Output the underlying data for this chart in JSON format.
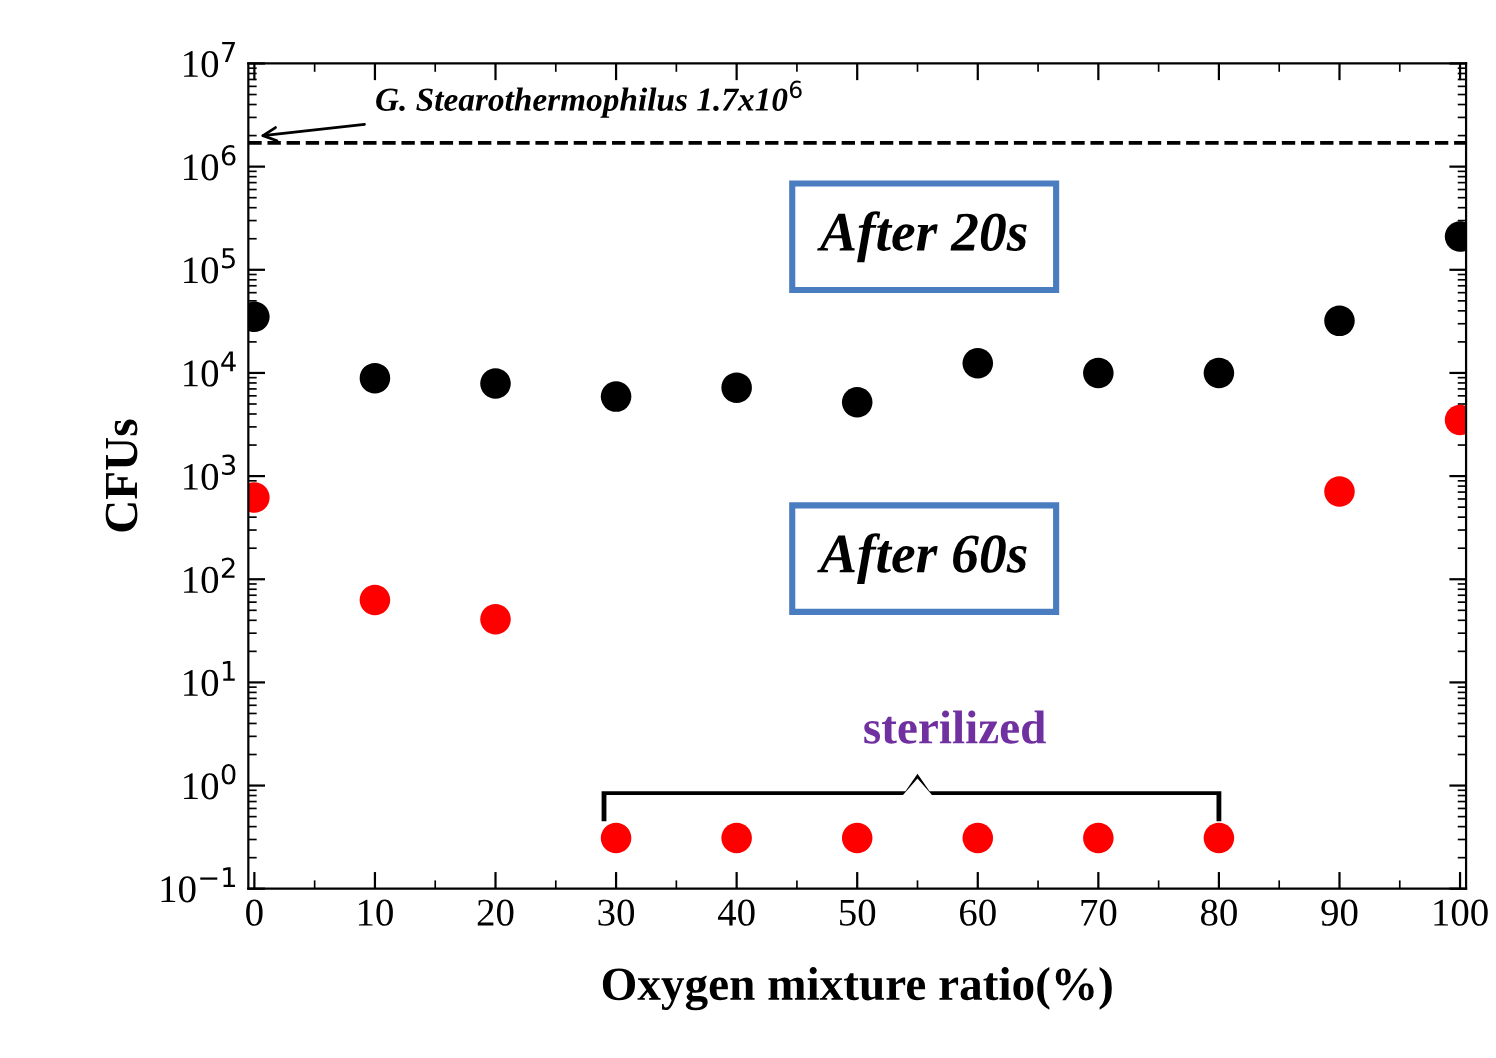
{
  "chart_data": {
    "type": "scatter",
    "xlabel": "Oxygen mixture ratio(%)",
    "ylabel": "CFUs",
    "log": "y",
    "grid": false,
    "marker": "circle",
    "x": [
      0,
      10,
      20,
      30,
      40,
      50,
      60,
      70,
      80,
      90,
      100
    ],
    "series": [
      {
        "color": "#000000",
        "values": [
          35000,
          8900,
          7900,
          5900,
          7200,
          5200,
          12400,
          10000,
          10000,
          32000,
          210000
        ]
      },
      {
        "color": "#ff0000",
        "values": [
          620,
          63,
          41,
          0.31,
          0.31,
          0.31,
          0.31,
          0.31,
          0.31,
          710,
          3500
        ]
      }
    ],
    "xlim": [
      -0.5,
      100.5
    ],
    "xticks": [
      0,
      10,
      20,
      30,
      40,
      50,
      60,
      70,
      80,
      90,
      100
    ],
    "ylim": [
      0.1,
      10000000
    ],
    "yticks": [
      {
        "value": 0.1,
        "label": "10$^{−1}$"
      },
      {
        "value": 1,
        "label": "10$^{0}$"
      },
      {
        "value": 10,
        "label": "10$^{1}$"
      },
      {
        "value": 100,
        "label": "10$^{2}$"
      },
      {
        "value": 1000,
        "label": "10$^{3}$"
      },
      {
        "value": 10000,
        "label": "10$^{4}$"
      },
      {
        "value": 100000,
        "label": "10$^{5}$"
      },
      {
        "value": 1000000,
        "label": "10$^{6}$"
      },
      {
        "value": 10000000,
        "label": "10$^{7}$"
      }
    ],
    "ref_lines": [
      {
        "axis": "y",
        "value": 1700000,
        "label": "G. Stearothermophilus 1.7x10$^{6}$",
        "color": "#000000",
        "line_style": "dashed"
      }
    ],
    "annotations": [
      "After 20s",
      "After 60s",
      "sterilized"
    ]
  }
}
